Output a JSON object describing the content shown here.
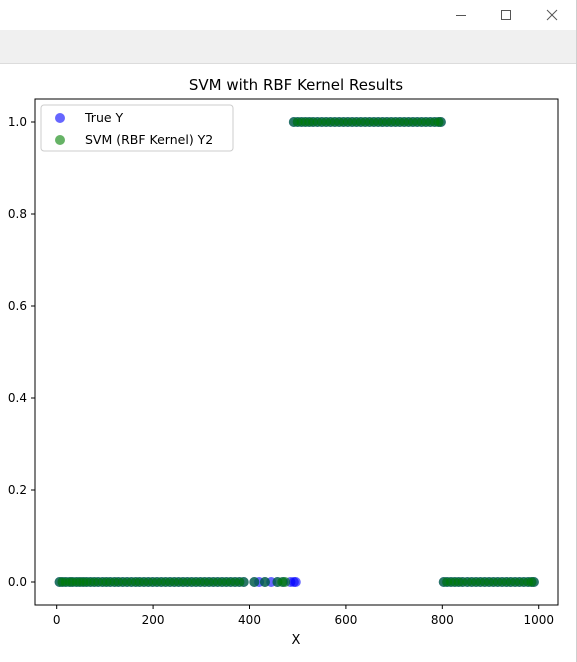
{
  "window": {
    "minimize_icon": "minimize-icon",
    "maximize_icon": "maximize-icon",
    "close_icon": "close-icon"
  },
  "chart_data": {
    "type": "scatter",
    "title": "SVM with RBF Kernel Results",
    "xlabel": "X",
    "ylabel": "",
    "xlim": [
      -45,
      1040
    ],
    "ylim": [
      -0.05,
      1.05
    ],
    "xticks": [
      0,
      200,
      400,
      600,
      800,
      1000
    ],
    "yticks": [
      0.0,
      0.2,
      0.4,
      0.6,
      0.8,
      1.0
    ],
    "xtick_labels": [
      "0",
      "200",
      "400",
      "600",
      "800",
      "1000"
    ],
    "ytick_labels": [
      "0.0",
      "0.2",
      "0.4",
      "0.6",
      "0.8",
      "1.0"
    ],
    "legend_position": "upper-left",
    "series": [
      {
        "name": "True Y",
        "color": "#0000ff",
        "alpha": 0.6,
        "points": [
          [
            6,
            0
          ],
          [
            12,
            0
          ],
          [
            19,
            0
          ],
          [
            27,
            0
          ],
          [
            33,
            0
          ],
          [
            41,
            0
          ],
          [
            48,
            0
          ],
          [
            55,
            0
          ],
          [
            62,
            0
          ],
          [
            70,
            0
          ],
          [
            78,
            0
          ],
          [
            86,
            0
          ],
          [
            95,
            0
          ],
          [
            103,
            0
          ],
          [
            111,
            0
          ],
          [
            120,
            0
          ],
          [
            128,
            0
          ],
          [
            137,
            0
          ],
          [
            146,
            0
          ],
          [
            155,
            0
          ],
          [
            164,
            0
          ],
          [
            172,
            0
          ],
          [
            181,
            0
          ],
          [
            190,
            0
          ],
          [
            199,
            0
          ],
          [
            208,
            0
          ],
          [
            217,
            0
          ],
          [
            226,
            0
          ],
          [
            235,
            0
          ],
          [
            244,
            0
          ],
          [
            253,
            0
          ],
          [
            262,
            0
          ],
          [
            271,
            0
          ],
          [
            280,
            0
          ],
          [
            289,
            0
          ],
          [
            298,
            0
          ],
          [
            307,
            0
          ],
          [
            316,
            0
          ],
          [
            325,
            0
          ],
          [
            334,
            0
          ],
          [
            343,
            0
          ],
          [
            352,
            0
          ],
          [
            361,
            0
          ],
          [
            370,
            0
          ],
          [
            379,
            0
          ],
          [
            388,
            0
          ],
          [
            410,
            0
          ],
          [
            420,
            0
          ],
          [
            432,
            0
          ],
          [
            445,
            0
          ],
          [
            458,
            0
          ],
          [
            470,
            0
          ],
          [
            485,
            0
          ],
          [
            492,
            0
          ],
          [
            496,
            0
          ],
          [
            492,
            1
          ],
          [
            500,
            1
          ],
          [
            508,
            1
          ],
          [
            516,
            1
          ],
          [
            524,
            1
          ],
          [
            532,
            1
          ],
          [
            541,
            1
          ],
          [
            550,
            1
          ],
          [
            559,
            1
          ],
          [
            568,
            1
          ],
          [
            577,
            1
          ],
          [
            586,
            1
          ],
          [
            595,
            1
          ],
          [
            604,
            1
          ],
          [
            613,
            1
          ],
          [
            622,
            1
          ],
          [
            631,
            1
          ],
          [
            640,
            1
          ],
          [
            649,
            1
          ],
          [
            658,
            1
          ],
          [
            667,
            1
          ],
          [
            676,
            1
          ],
          [
            685,
            1
          ],
          [
            694,
            1
          ],
          [
            703,
            1
          ],
          [
            712,
            1
          ],
          [
            721,
            1
          ],
          [
            730,
            1
          ],
          [
            739,
            1
          ],
          [
            748,
            1
          ],
          [
            757,
            1
          ],
          [
            766,
            1
          ],
          [
            775,
            1
          ],
          [
            784,
            1
          ],
          [
            792,
            1
          ],
          [
            797,
            1
          ],
          [
            803,
            0
          ],
          [
            810,
            0
          ],
          [
            818,
            0
          ],
          [
            826,
            0
          ],
          [
            834,
            0
          ],
          [
            842,
            0
          ],
          [
            852,
            0
          ],
          [
            861,
            0
          ],
          [
            870,
            0
          ],
          [
            879,
            0
          ],
          [
            888,
            0
          ],
          [
            897,
            0
          ],
          [
            906,
            0
          ],
          [
            915,
            0
          ],
          [
            924,
            0
          ],
          [
            933,
            0
          ],
          [
            942,
            0
          ],
          [
            951,
            0
          ],
          [
            960,
            0
          ],
          [
            969,
            0
          ],
          [
            978,
            0
          ],
          [
            985,
            0
          ],
          [
            990,
            0
          ]
        ]
      },
      {
        "name": "SVM (RBF Kernel) Y2",
        "color": "#008000",
        "alpha": 0.6,
        "points": [
          [
            6,
            0
          ],
          [
            12,
            0
          ],
          [
            19,
            0
          ],
          [
            27,
            0
          ],
          [
            33,
            0
          ],
          [
            41,
            0
          ],
          [
            48,
            0
          ],
          [
            55,
            0
          ],
          [
            62,
            0
          ],
          [
            70,
            0
          ],
          [
            78,
            0
          ],
          [
            86,
            0
          ],
          [
            95,
            0
          ],
          [
            103,
            0
          ],
          [
            111,
            0
          ],
          [
            120,
            0
          ],
          [
            128,
            0
          ],
          [
            137,
            0
          ],
          [
            146,
            0
          ],
          [
            155,
            0
          ],
          [
            164,
            0
          ],
          [
            172,
            0
          ],
          [
            181,
            0
          ],
          [
            190,
            0
          ],
          [
            199,
            0
          ],
          [
            208,
            0
          ],
          [
            217,
            0
          ],
          [
            226,
            0
          ],
          [
            235,
            0
          ],
          [
            244,
            0
          ],
          [
            253,
            0
          ],
          [
            262,
            0
          ],
          [
            271,
            0
          ],
          [
            280,
            0
          ],
          [
            289,
            0
          ],
          [
            298,
            0
          ],
          [
            307,
            0
          ],
          [
            316,
            0
          ],
          [
            325,
            0
          ],
          [
            334,
            0
          ],
          [
            343,
            0
          ],
          [
            352,
            0
          ],
          [
            361,
            0
          ],
          [
            370,
            0
          ],
          [
            379,
            0
          ],
          [
            388,
            0
          ],
          [
            410,
            0
          ],
          [
            432,
            0
          ],
          [
            458,
            0
          ],
          [
            468,
            0
          ],
          [
            474,
            0
          ],
          [
            492,
            1
          ],
          [
            500,
            1
          ],
          [
            508,
            1
          ],
          [
            516,
            1
          ],
          [
            524,
            1
          ],
          [
            532,
            1
          ],
          [
            541,
            1
          ],
          [
            550,
            1
          ],
          [
            559,
            1
          ],
          [
            568,
            1
          ],
          [
            577,
            1
          ],
          [
            586,
            1
          ],
          [
            595,
            1
          ],
          [
            604,
            1
          ],
          [
            613,
            1
          ],
          [
            622,
            1
          ],
          [
            631,
            1
          ],
          [
            640,
            1
          ],
          [
            649,
            1
          ],
          [
            658,
            1
          ],
          [
            667,
            1
          ],
          [
            676,
            1
          ],
          [
            685,
            1
          ],
          [
            694,
            1
          ],
          [
            703,
            1
          ],
          [
            712,
            1
          ],
          [
            721,
            1
          ],
          [
            730,
            1
          ],
          [
            739,
            1
          ],
          [
            748,
            1
          ],
          [
            757,
            1
          ],
          [
            766,
            1
          ],
          [
            775,
            1
          ],
          [
            784,
            1
          ],
          [
            792,
            1
          ],
          [
            797,
            1
          ],
          [
            803,
            0
          ],
          [
            810,
            0
          ],
          [
            818,
            0
          ],
          [
            826,
            0
          ],
          [
            834,
            0
          ],
          [
            842,
            0
          ],
          [
            852,
            0
          ],
          [
            861,
            0
          ],
          [
            870,
            0
          ],
          [
            879,
            0
          ],
          [
            888,
            0
          ],
          [
            897,
            0
          ],
          [
            906,
            0
          ],
          [
            915,
            0
          ],
          [
            924,
            0
          ],
          [
            933,
            0
          ],
          [
            942,
            0
          ],
          [
            951,
            0
          ],
          [
            960,
            0
          ],
          [
            969,
            0
          ],
          [
            978,
            0
          ],
          [
            985,
            0
          ],
          [
            990,
            0
          ]
        ]
      }
    ]
  }
}
